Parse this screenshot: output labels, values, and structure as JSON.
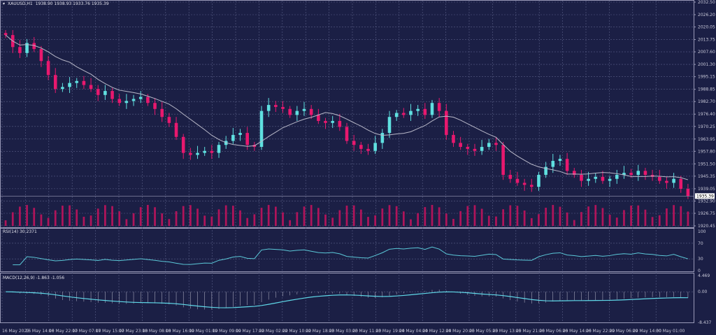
{
  "header": {
    "symbol": "XAUUSD,H1",
    "ohlc": "1938.90 1938.93 1933.76 1935.39"
  },
  "rsi_label": "RSI(14) 30.2371",
  "macd_label": "MACD(12,26,9) -1.863 -1.056",
  "colors": {
    "background": "#1b1f45",
    "bull": "#5fe0e0",
    "bear": "#e8186e",
    "ma": "#b8b8c8",
    "rsi": "#5bc8d8",
    "macd": "#5fd8e8",
    "grid": "#5a5f88",
    "volume": "#b0145a"
  },
  "chart_data": [
    {
      "type": "candlestick",
      "title": "",
      "price_axis_ticks": [
        "2032.50",
        "2026.20",
        "2020.05",
        "2013.75",
        "2007.60",
        "2001.30",
        "1995.15",
        "1988.85",
        "1982.70",
        "1976.40",
        "1970.25",
        "1963.95",
        "1957.80",
        "1951.50",
        "1945.35",
        "1939.05",
        "1932.90",
        "1926.75",
        "1920.45"
      ],
      "ylim": [
        1920.45,
        2032.5
      ],
      "current_price": "1935.39",
      "grid": true,
      "overlay": "moving average",
      "closes": [
        2016,
        2010,
        2007,
        2012,
        2009,
        2003,
        1996,
        1989,
        1990,
        1992,
        1993,
        1991,
        1989,
        1986,
        1988,
        1984,
        1982,
        1983,
        1984,
        1985,
        1982,
        1979,
        1975,
        1972,
        1965,
        1957,
        1956,
        1957,
        1958,
        1957,
        1961,
        1963,
        1966,
        1967,
        1961,
        1960,
        1978,
        1981,
        1980,
        1979,
        1976,
        1978,
        1979,
        1976,
        1973,
        1972,
        1973,
        1970,
        1963,
        1961,
        1959,
        1958,
        1962,
        1967,
        1975,
        1977,
        1976,
        1978,
        1979,
        1976,
        1982,
        1978,
        1966,
        1962,
        1960,
        1959,
        1958,
        1960,
        1962,
        1961,
        1946,
        1944,
        1942,
        1941,
        1940,
        1946,
        1950,
        1953,
        1954,
        1948,
        1946,
        1943,
        1944,
        1945,
        1943,
        1944,
        1946,
        1947,
        1946,
        1948,
        1946,
        1945,
        1943,
        1942,
        1944,
        1939,
        1935.39
      ],
      "x_tick_labels": [
        "16 May 2023",
        "16 May 14:00",
        "16 May 22:00",
        "17 May 07:00",
        "17 May 15:00",
        "17 May 23:00",
        "18 May 08:00",
        "18 May 16:00",
        "19 May 01:00",
        "19 May 09:00",
        "19 May 17:00",
        "22 May 02:00",
        "22 May 10:00",
        "22 May 18:00",
        "23 May 03:00",
        "23 May 11:00",
        "23 May 19:00",
        "24 May 04:00",
        "24 May 12:00",
        "24 May 20:00",
        "25 May 05:00",
        "25 May 13:00",
        "25 May 21:00",
        "26 May 06:00",
        "26 May 14:00",
        "26 May 22:00",
        "29 May 06:00",
        "29 May 14:00",
        "30 May 01:00"
      ]
    },
    {
      "type": "line",
      "name": "RSI(14)",
      "ylim": [
        0,
        100
      ],
      "y_ticks": [
        "100",
        "70",
        "30",
        "0"
      ],
      "last": 30.2371
    },
    {
      "type": "line",
      "name": "MACD(12,26,9)",
      "ylim": [
        -8.437,
        4.469
      ],
      "y_ticks": [
        "4.469",
        "0.00",
        "-8.437"
      ],
      "macd": -1.863,
      "signal": -1.056
    }
  ]
}
